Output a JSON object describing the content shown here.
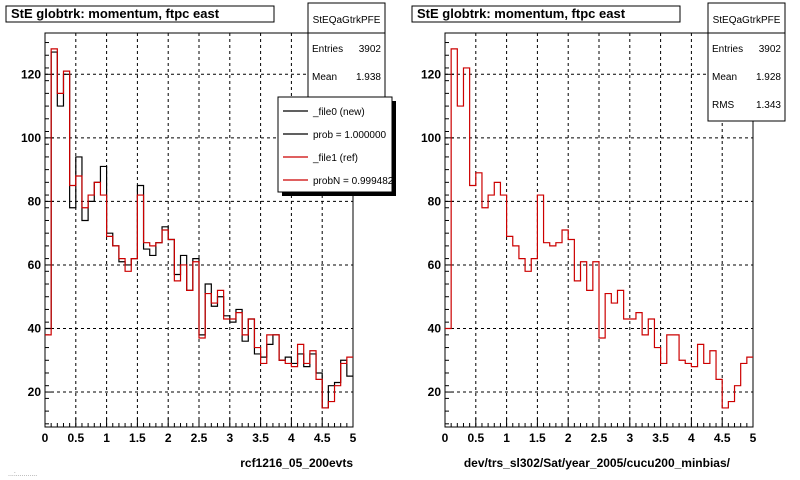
{
  "footer_text": "...:...........",
  "chart_data": [
    {
      "type": "histogram",
      "title": "StE globtrk: momentum, ftpc east",
      "xlabel": "rcf1216_05_200evts",
      "ylabel": "",
      "xlim": [
        0,
        5
      ],
      "ylim": [
        9,
        133
      ],
      "x_ticks": [
        "0",
        "0.5",
        "1",
        "1.5",
        "2",
        "2.5",
        "3",
        "3.5",
        "4",
        "4.5",
        "5"
      ],
      "y_ticks": [
        "20",
        "40",
        "60",
        "80",
        "100",
        "120"
      ],
      "grid": true,
      "bin_width": 0.1,
      "stats": {
        "name": "StEQaGtrkPFE",
        "rows": [
          {
            "label": "Entries",
            "value": "3902"
          },
          {
            "label": "Mean",
            "value": "1.938"
          }
        ]
      },
      "legend": {
        "placement": "top-right",
        "entries": [
          {
            "label": "_file0 (new)",
            "color": "#000000"
          },
          {
            "label": "prob = 1.000000",
            "color": "#000000"
          },
          {
            "label": "_file1 (ref)",
            "color": "#cc0000"
          },
          {
            "label": "probN = 0.999482",
            "color": "#cc0000"
          }
        ]
      },
      "series": [
        {
          "color": "#000000",
          "values": [
            40,
            127,
            110,
            120,
            78,
            94,
            74,
            80,
            86,
            91,
            70,
            66,
            61,
            60,
            62,
            85,
            65,
            63,
            67,
            72,
            68,
            57,
            63,
            52,
            62,
            38,
            54,
            47,
            50,
            44,
            42,
            46,
            36,
            43,
            32,
            31,
            35,
            38,
            30,
            31,
            29,
            32,
            28,
            32,
            26,
            15,
            22,
            23,
            30,
            25
          ]
        },
        {
          "color": "#cc0000",
          "values": [
            38,
            128,
            114,
            121,
            85,
            88,
            78,
            82,
            86,
            82,
            69,
            66,
            62,
            58,
            62,
            82,
            67,
            66,
            67,
            71,
            68,
            55,
            60,
            52,
            61,
            37,
            51,
            48,
            52,
            43,
            43,
            45,
            38,
            43,
            34,
            29,
            38,
            38,
            30,
            29,
            28,
            35,
            29,
            33,
            24,
            15,
            17,
            22,
            29,
            31
          ]
        }
      ]
    },
    {
      "type": "histogram",
      "title": "StE globtrk: momentum, ftpc east",
      "xlabel": "dev/trs_sl302/Sat/year_2005/cucu200_minbias/",
      "ylabel": "",
      "xlim": [
        0,
        5
      ],
      "ylim": [
        9,
        133
      ],
      "x_ticks": [
        "0",
        "0.5",
        "1",
        "1.5",
        "2",
        "2.5",
        "3",
        "3.5",
        "4",
        "4.5",
        "5"
      ],
      "y_ticks": [
        "20",
        "40",
        "60",
        "80",
        "100",
        "120"
      ],
      "grid": true,
      "bin_width": 0.1,
      "stats": {
        "name": "StEQaGtrkPFE",
        "rows": [
          {
            "label": "Entries",
            "value": "3902"
          },
          {
            "label": "Mean",
            "value": "1.928"
          },
          {
            "label": "RMS",
            "value": "1.343"
          }
        ]
      },
      "series": [
        {
          "color": "#cc0000",
          "values": [
            40,
            128,
            110,
            122,
            85,
            89,
            78,
            82,
            86,
            82,
            69,
            66,
            62,
            58,
            62,
            82,
            67,
            66,
            67,
            71,
            68,
            55,
            61,
            52,
            61,
            37,
            51,
            48,
            52,
            43,
            43,
            45,
            38,
            43,
            34,
            29,
            38,
            38,
            30,
            29,
            28,
            35,
            29,
            33,
            24,
            15,
            17,
            22,
            29,
            31
          ]
        }
      ]
    }
  ]
}
